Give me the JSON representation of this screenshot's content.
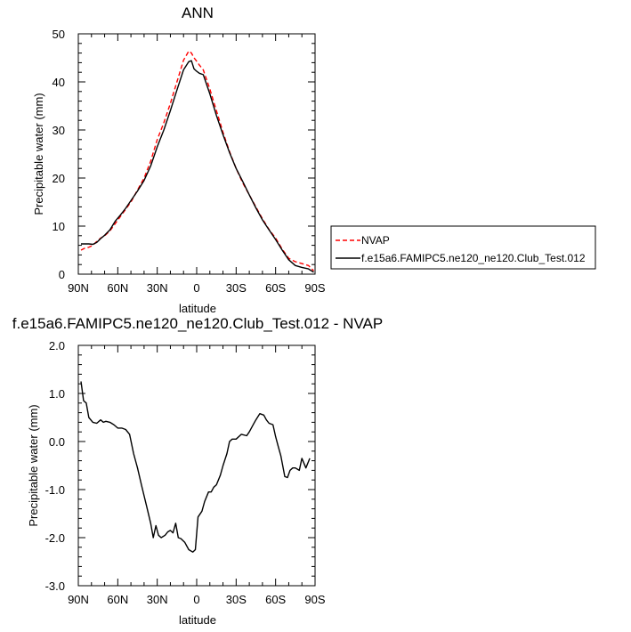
{
  "chart_data": [
    {
      "type": "line",
      "title": "ANN",
      "xlabel": "latitude",
      "ylabel": "Precipitable water (mm)",
      "xlim": [
        90,
        -90
      ],
      "ylim": [
        0,
        50
      ],
      "x_ticks": [
        90,
        60,
        30,
        0,
        -30,
        -60,
        -90
      ],
      "x_tick_labels": [
        "90N",
        "60N",
        "30N",
        "0",
        "30S",
        "60S",
        "90S"
      ],
      "y_ticks": [
        0,
        10,
        20,
        30,
        40,
        50
      ],
      "y_tick_labels": [
        "0",
        "10",
        "20",
        "30",
        "40",
        "50"
      ],
      "grid": false,
      "legend_position": "right",
      "series": [
        {
          "name": "NVAP",
          "color": "#ff0000",
          "dash": "dashed",
          "x": [
            88,
            85,
            82,
            79,
            76,
            73,
            70,
            66,
            62,
            58,
            54,
            50,
            45,
            40,
            35,
            30,
            25,
            20,
            15,
            10,
            6,
            4,
            2,
            0,
            -2,
            -5,
            -10,
            -15,
            -20,
            -25,
            -30,
            -35,
            -40,
            -45,
            -50,
            -55,
            -60,
            -65,
            -70,
            -75,
            -80,
            -85,
            -89
          ],
          "y": [
            5.0,
            5.4,
            5.6,
            6.0,
            6.8,
            7.5,
            8.0,
            9.0,
            10.5,
            12.0,
            13.5,
            15.0,
            17.5,
            20.0,
            23.5,
            28.0,
            31.5,
            35.5,
            40.0,
            44.5,
            46.4,
            46.0,
            45.0,
            44.3,
            43.5,
            42.5,
            38.5,
            34.0,
            29.5,
            25.5,
            22.0,
            19.0,
            16.5,
            14.0,
            11.5,
            9.3,
            7.5,
            5.2,
            3.3,
            2.6,
            2.2,
            1.8,
            0.7
          ]
        },
        {
          "name": "f.e15a6.FAMIPC5.ne120_ne120.Club_Test.012",
          "color": "#000000",
          "dash": "solid",
          "x": [
            88,
            85,
            82,
            79,
            76,
            73,
            70,
            66,
            62,
            58,
            54,
            50,
            45,
            40,
            35,
            30,
            25,
            20,
            15,
            10,
            6,
            4,
            2,
            0,
            -2,
            -5,
            -10,
            -15,
            -20,
            -25,
            -30,
            -35,
            -40,
            -45,
            -50,
            -55,
            -60,
            -65,
            -70,
            -75,
            -80,
            -85,
            -89
          ],
          "y": [
            6.3,
            6.3,
            6.3,
            6.2,
            6.6,
            7.4,
            8.1,
            9.2,
            11.0,
            12.3,
            13.7,
            15.3,
            17.3,
            19.5,
            22.5,
            26.5,
            30.0,
            34.0,
            38.3,
            42.5,
            44.2,
            44.4,
            42.7,
            42.2,
            41.8,
            41.5,
            37.5,
            33.0,
            29.0,
            25.3,
            22.0,
            19.3,
            16.5,
            13.8,
            11.3,
            9.2,
            7.2,
            5.0,
            3.0,
            1.8,
            1.4,
            1.1,
            0.4
          ]
        }
      ]
    },
    {
      "type": "line",
      "title": "f.e15a6.FAMIPC5.ne120_ne120.Club_Test.012 - NVAP",
      "xlabel": "latitude",
      "ylabel": "Precipitable water (mm)",
      "xlim": [
        90,
        -90
      ],
      "ylim": [
        -3.0,
        2.0
      ],
      "x_ticks": [
        90,
        60,
        30,
        0,
        -30,
        -60,
        -90
      ],
      "x_tick_labels": [
        "90N",
        "60N",
        "30N",
        "0",
        "30S",
        "60S",
        "90S"
      ],
      "y_ticks": [
        -3.0,
        -2.0,
        -1.0,
        0.0,
        1.0,
        2.0
      ],
      "y_tick_labels": [
        "-3.0",
        "-2.0",
        "-1.0",
        "0.0",
        "1.0",
        "2.0"
      ],
      "grid": false,
      "series": [
        {
          "color": "#000000",
          "dash": "solid",
          "x": [
            88,
            86,
            84,
            82,
            79,
            76,
            73,
            71,
            69,
            66,
            63,
            60,
            57,
            54,
            51,
            48,
            45,
            42,
            38,
            35,
            33,
            31,
            29,
            27,
            24,
            22,
            20,
            18,
            16,
            14,
            12,
            9,
            6,
            3,
            1,
            -1,
            -4,
            -6,
            -9,
            -11,
            -13,
            -15,
            -18,
            -20,
            -23,
            -25,
            -27,
            -30,
            -34,
            -38,
            -40,
            -43,
            -45,
            -48,
            -51,
            -53,
            -55,
            -58,
            -60,
            -62,
            -64,
            -67,
            -69,
            -71,
            -73,
            -75,
            -78,
            -80,
            -83,
            -86
          ],
          "y": [
            1.25,
            0.85,
            0.8,
            0.5,
            0.4,
            0.38,
            0.45,
            0.4,
            0.42,
            0.4,
            0.35,
            0.28,
            0.28,
            0.25,
            0.15,
            -0.25,
            -0.55,
            -0.9,
            -1.35,
            -1.7,
            -2.0,
            -1.75,
            -1.95,
            -2.0,
            -1.95,
            -1.88,
            -1.85,
            -1.9,
            -1.7,
            -2.0,
            -2.02,
            -2.1,
            -2.25,
            -2.3,
            -2.25,
            -1.57,
            -1.45,
            -1.25,
            -1.05,
            -1.05,
            -0.95,
            -0.9,
            -0.7,
            -0.5,
            -0.25,
            0.0,
            0.05,
            0.05,
            0.15,
            0.12,
            0.2,
            0.35,
            0.45,
            0.58,
            0.55,
            0.45,
            0.38,
            0.35,
            0.1,
            -0.1,
            -0.3,
            -0.73,
            -0.75,
            -0.6,
            -0.55,
            -0.55,
            -0.6,
            -0.35,
            -0.55,
            -0.35
          ]
        }
      ]
    }
  ],
  "legend": {
    "entries": [
      "NVAP",
      "f.e15a6.FAMIPC5.ne120_ne120.Club_Test.012"
    ]
  }
}
